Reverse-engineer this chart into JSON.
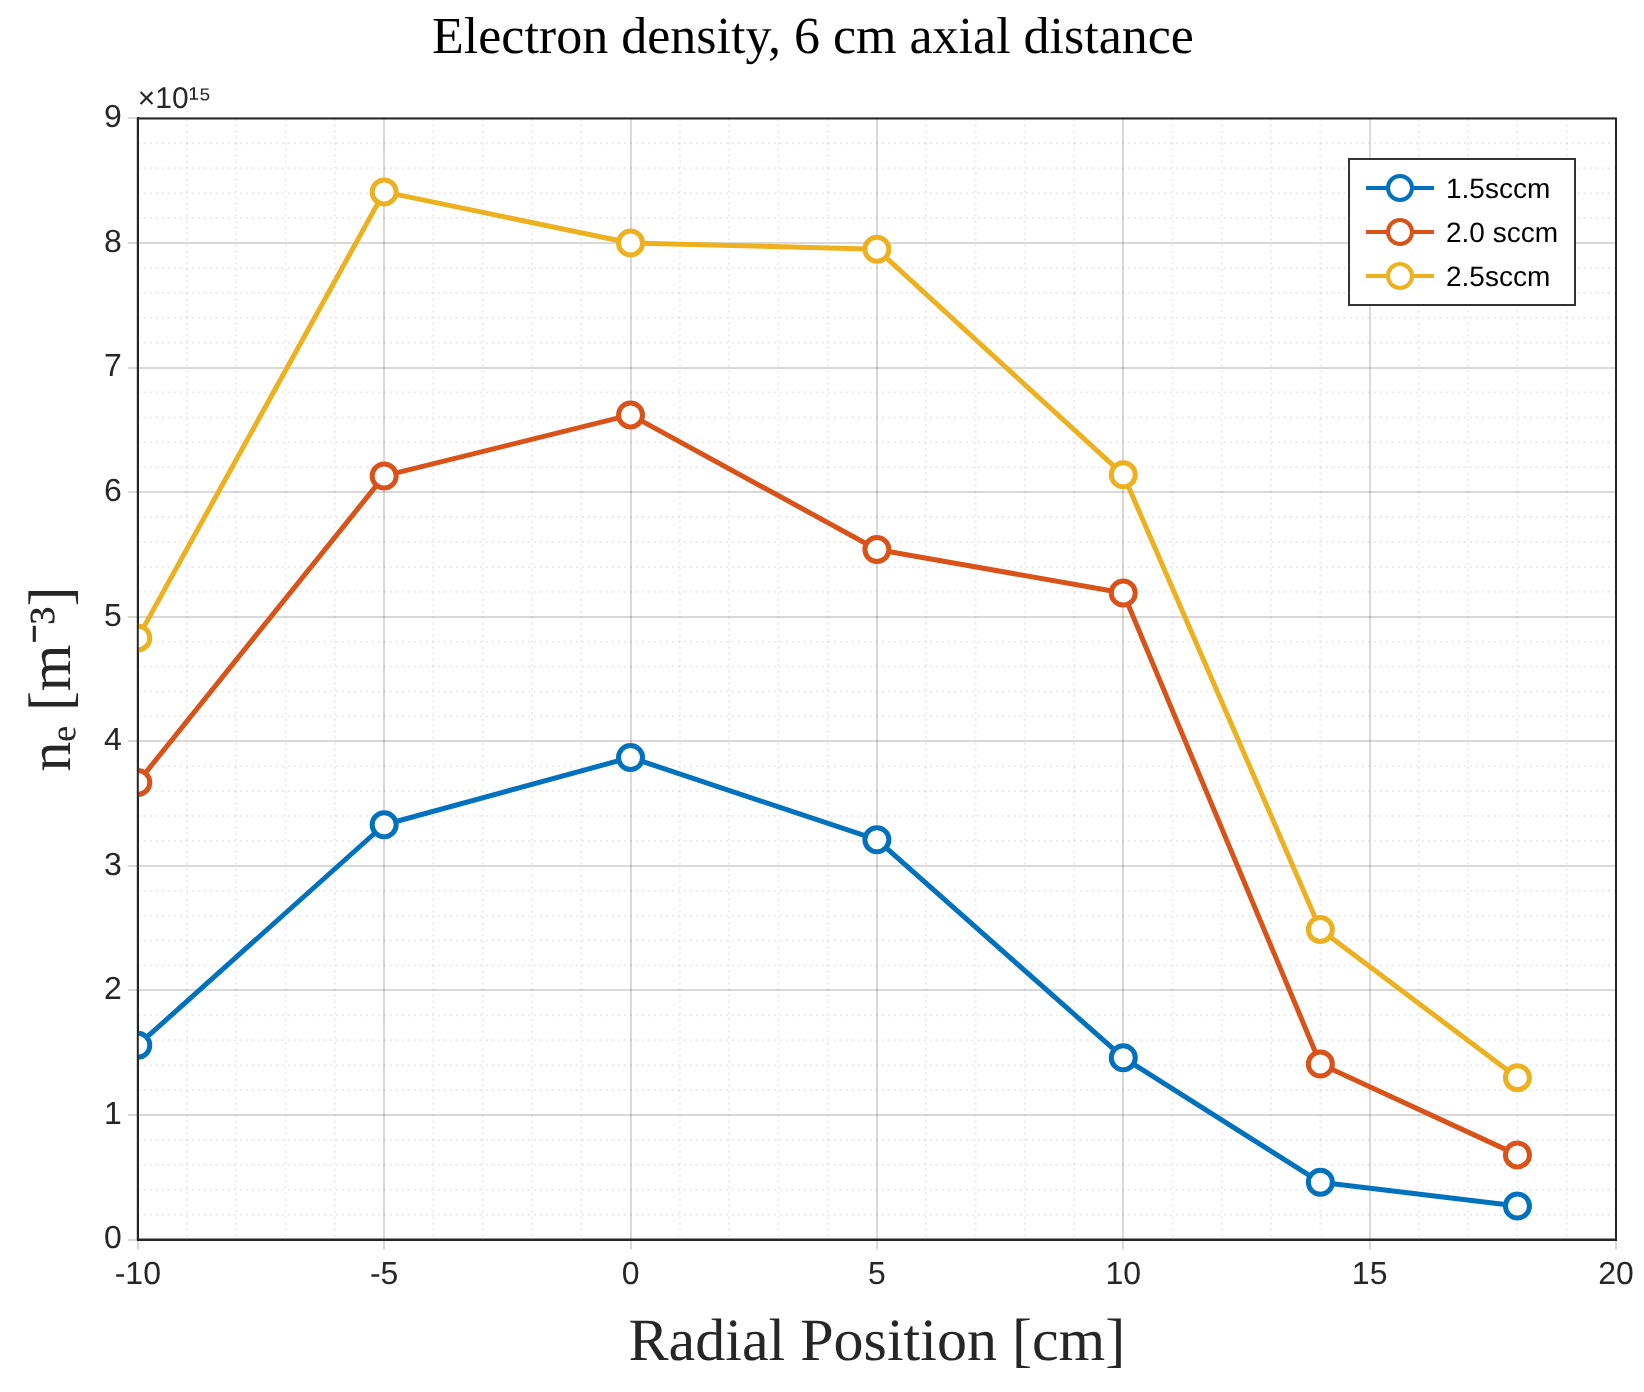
{
  "chart_data": {
    "type": "line",
    "title": "Electron density, 6 cm axial distance",
    "xlabel": "Radial Position [cm]",
    "ylabel": "nₑ [m⁻³]",
    "annotations": [
      "×10¹⁵"
    ],
    "x": [
      -10,
      -5,
      0,
      5,
      10,
      14,
      18
    ],
    "series": [
      {
        "name": "1.5sccm",
        "color": "#0072bd",
        "values": [
          1.56,
          3.33,
          3.87,
          3.21,
          1.46,
          0.46,
          0.27
        ]
      },
      {
        "name": "2.0 sccm",
        "color": "#d95319",
        "values": [
          3.67,
          6.13,
          6.62,
          5.54,
          5.19,
          1.41,
          0.68
        ]
      },
      {
        "name": "2.5sccm",
        "color": "#edb120",
        "values": [
          4.83,
          8.41,
          8.0,
          7.95,
          6.14,
          2.49,
          1.3
        ]
      }
    ],
    "xlim": [
      -10,
      20
    ],
    "xticks": [
      -10,
      -5,
      0,
      5,
      10,
      15,
      20
    ],
    "ylim": [
      0,
      9
    ],
    "yticks": [
      0,
      1,
      2,
      3,
      4,
      5,
      6,
      7,
      8,
      9
    ],
    "grid": true,
    "legend": "top right",
    "marker": "circle",
    "line_style": "solid"
  }
}
